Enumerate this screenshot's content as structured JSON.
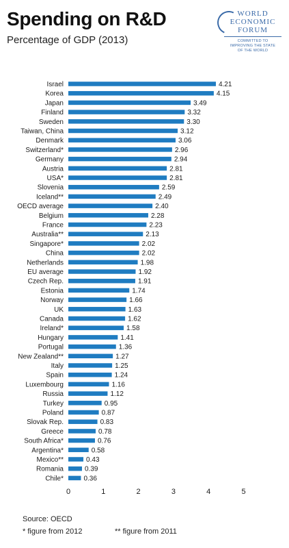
{
  "header": {
    "title": "Spending on R&D",
    "subtitle": "Percentage of GDP (2013)"
  },
  "logo": {
    "line1": "WORLD",
    "line2": "ECONOMIC",
    "line3": "FORUM",
    "tagline1": "COMMITTED TO",
    "tagline2": "IMPROVING THE STATE",
    "tagline3": "OF THE WORLD",
    "color": "#3a6aa8"
  },
  "footer": {
    "source": "Source: OECD",
    "note_2012": "* figure from 2012",
    "note_2011": "** figure from 2011"
  },
  "chart_data": {
    "type": "bar",
    "orientation": "horizontal",
    "bar_color": "#1f7cc1",
    "xlim": [
      0,
      5
    ],
    "xticks": [
      "0",
      "1",
      "2",
      "3",
      "4",
      "5"
    ],
    "grid": false,
    "categories": [
      "Israel",
      "Korea",
      "Japan",
      "Finland",
      "Sweden",
      "Taiwan, China",
      "Denmark",
      "Switzerland*",
      "Germany",
      "Austria",
      "USA*",
      "Slovenia",
      "Iceland**",
      "OECD average",
      "Belgium",
      "France",
      "Australia**",
      "Singapore*",
      "China",
      "Netherlands",
      "EU average",
      "Czech Rep.",
      "Estonia",
      "Norway",
      "UK",
      "Canada",
      "Ireland*",
      "Hungary",
      "Portugal",
      "New Zealand**",
      "Italy",
      "Spain",
      "Luxembourg",
      "Russia",
      "Turkey",
      "Poland",
      "Slovak Rep.",
      "Greece",
      "South Africa*",
      "Argentina*",
      "Mexico**",
      "Romania",
      "Chile*"
    ],
    "values": [
      4.21,
      4.15,
      3.49,
      3.32,
      3.3,
      3.12,
      3.06,
      2.96,
      2.94,
      2.81,
      2.81,
      2.59,
      2.49,
      2.4,
      2.28,
      2.23,
      2.13,
      2.02,
      2.02,
      1.98,
      1.92,
      1.91,
      1.74,
      1.66,
      1.63,
      1.62,
      1.58,
      1.41,
      1.36,
      1.27,
      1.25,
      1.24,
      1.16,
      1.12,
      0.95,
      0.87,
      0.83,
      0.78,
      0.76,
      0.58,
      0.43,
      0.39,
      0.36
    ],
    "value_labels": [
      "4.21",
      "4.15",
      "3.49",
      "3.32",
      "3.30",
      "3.12",
      "3.06",
      "2.96",
      "2.94",
      "2.81",
      "2.81",
      "2.59",
      "2.49",
      "2.40",
      "2.28",
      "2.23",
      "2.13",
      "2.02",
      "2.02",
      "1.98",
      "1.92",
      "1.91",
      "1.74",
      "1.66",
      "1.63",
      "1.62",
      "1.58",
      "1.41",
      "1.36",
      "1.27",
      "1.25",
      "1.24",
      "1.16",
      "1.12",
      "0.95",
      "0.87",
      "0.83",
      "0.78",
      "0.76",
      "0.58",
      "0.43",
      "0.39",
      "0.36"
    ]
  }
}
